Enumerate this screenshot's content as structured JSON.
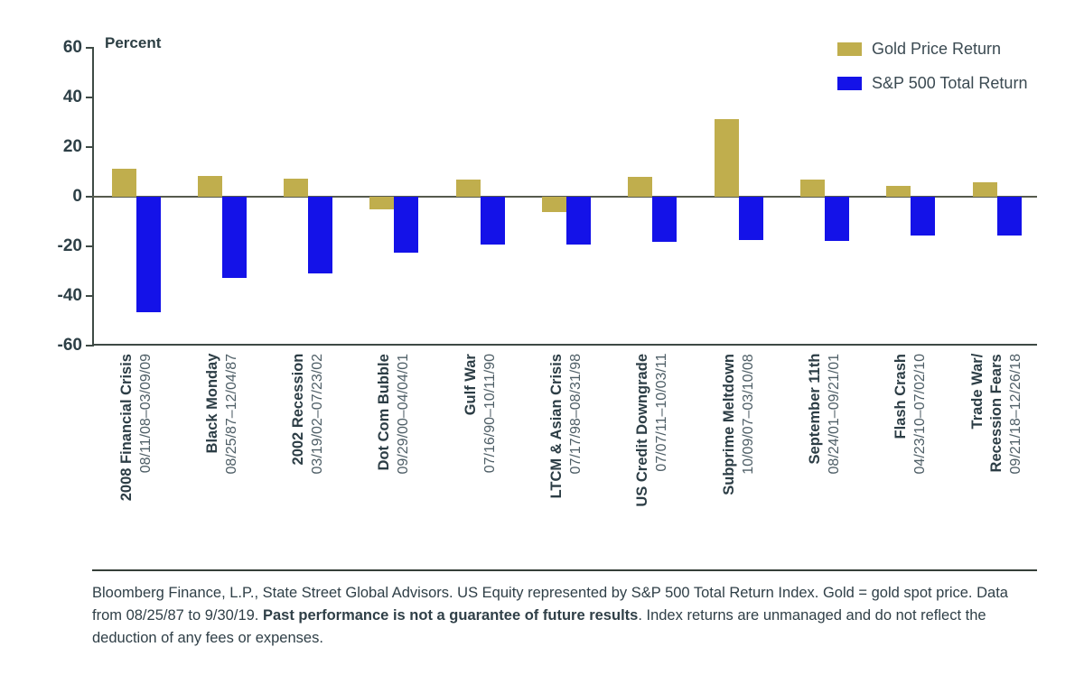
{
  "chart_data": {
    "type": "bar",
    "title": "",
    "ylabel": "Percent",
    "ylim": [
      -60,
      60
    ],
    "yticks": [
      60,
      40,
      20,
      0,
      -20,
      -40,
      -60
    ],
    "grid": false,
    "legend_position": "top-right",
    "categories": [
      {
        "name": "2008 Financial Crisis",
        "dates": "08/11/08–03/09/09"
      },
      {
        "name": "Black Monday",
        "dates": "08/25/87–12/04/87"
      },
      {
        "name": "2002 Recession",
        "dates": "03/19/02–07/23/02"
      },
      {
        "name": "Dot Com Bubble",
        "dates": "09/29/00–04/04/01"
      },
      {
        "name": "Gulf War",
        "dates": "07/16/90–10/11/90"
      },
      {
        "name": "LTCM & Asian Crisis",
        "dates": "07/17/98–08/31/98"
      },
      {
        "name": "US Credit Downgrade",
        "dates": "07/07/11–10/03/11"
      },
      {
        "name": "Subprime Meltdown",
        "dates": "10/09/07–03/10/08"
      },
      {
        "name": "September 11th",
        "dates": "08/24/01–09/21/01"
      },
      {
        "name": "Flash Crash",
        "dates": "04/23/10–07/02/10"
      },
      {
        "name": "Trade War/\nRecession Fears",
        "dates": "09/21/18–12/26/18"
      }
    ],
    "series": [
      {
        "name": "Gold Price Return",
        "color": "#c0ae4d",
        "values": [
          11.4,
          8.2,
          7.1,
          -5.1,
          6.8,
          -6.0,
          8.1,
          31.2,
          7.0,
          4.3,
          5.9
        ]
      },
      {
        "name": "S&P 500 Total Return",
        "color": "#1412e8",
        "values": [
          -46.7,
          -32.9,
          -31.0,
          -22.4,
          -19.2,
          -19.2,
          -18.3,
          -17.3,
          -17.8,
          -15.6,
          -15.7
        ]
      }
    ]
  },
  "footer": {
    "text_before": "Bloomberg Finance, L.P., State Street Global Advisors. US Equity represented by S&P 500 Total Return Index. Gold = gold spot price. Data from 08/25/87 to 9/30/19. ",
    "bold_text": "Past performance is not a guarantee of future results",
    "text_after": ". Index returns are unmanaged and do not reflect the deduction of any fees or expenses."
  }
}
